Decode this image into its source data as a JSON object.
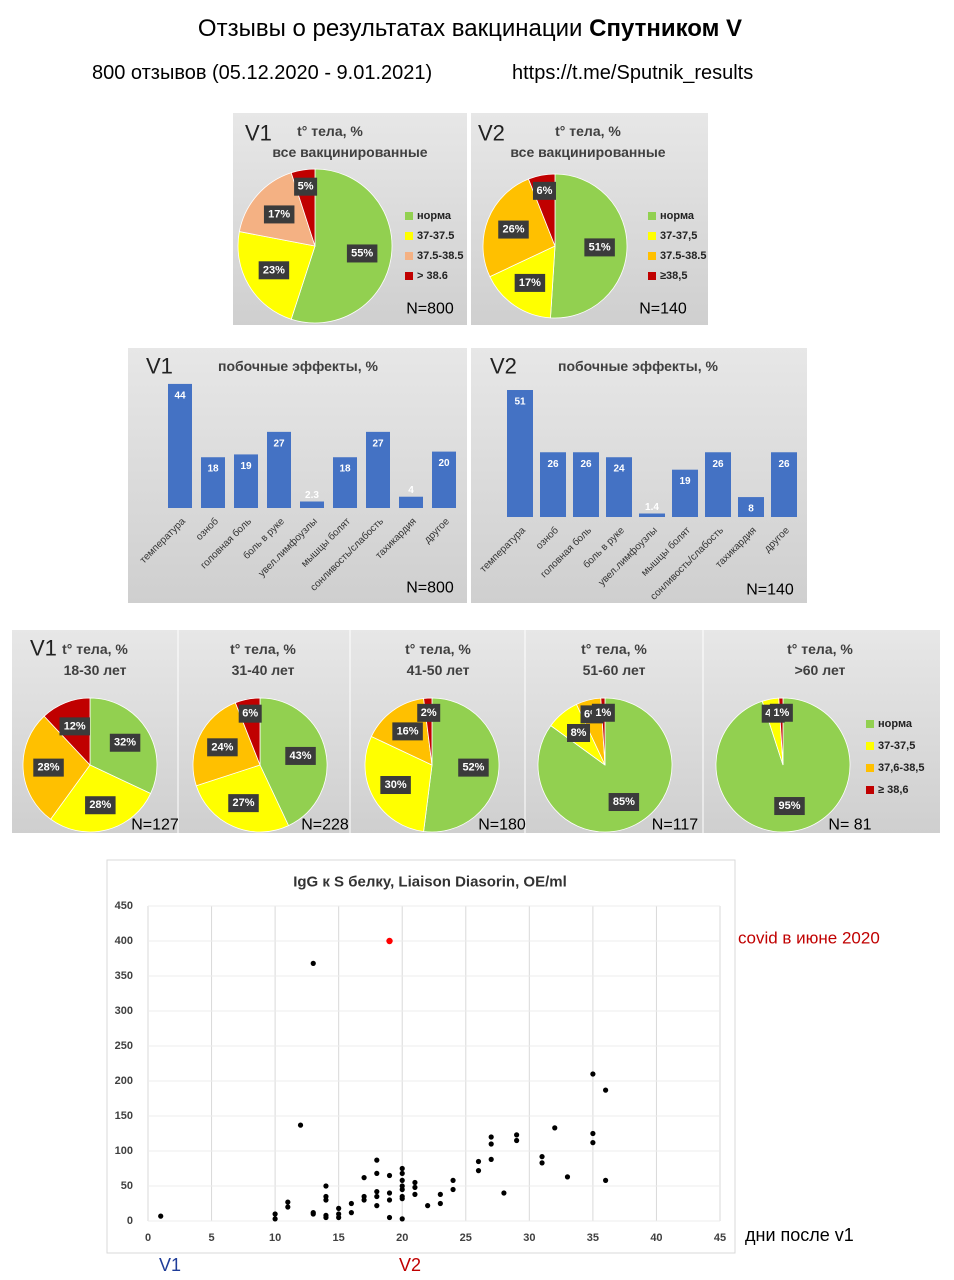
{
  "header": {
    "title": "Отзывы о результатах вакцинации ",
    "title_bold": "Спутником V",
    "subtitle": "800 отзывов (05.12.2020 - 9.01.2021)",
    "link": "https://t.me/Sputnik_results"
  },
  "chart_data": [
    {
      "type": "pie",
      "panel_label": "V1",
      "title": "t° тела, %",
      "subtitle": "все вакцинированные",
      "categories": [
        "норма",
        "37-37.5",
        "37.5-38.5",
        "> 38.6"
      ],
      "values": [
        55,
        23,
        17,
        5
      ],
      "value_labels": [
        "55%",
        "23%",
        "17%",
        "5%"
      ],
      "colors": [
        "#92d050",
        "#ffff00",
        "#f4b183",
        "#c00000"
      ],
      "legend": "right",
      "sample_size": "N=800"
    },
    {
      "type": "pie",
      "panel_label": "V2",
      "title": "t° тела, %",
      "subtitle": "все вакцинированные",
      "categories": [
        "норма",
        "37-37,5",
        "37.5-38.5",
        "≥38,5"
      ],
      "values": [
        51,
        17,
        26,
        6
      ],
      "value_labels": [
        "51%",
        "17%",
        "26%",
        "6%"
      ],
      "colors": [
        "#92d050",
        "#ffff00",
        "#ffc000",
        "#c00000"
      ],
      "legend": "right",
      "sample_size": "N=140"
    },
    {
      "type": "bar",
      "panel_label": "V1",
      "title": "побочные эффекты, %",
      "categories": [
        "температура",
        "озноб",
        "головная боль",
        "боль в руке",
        "увел.лимфоузлы",
        "мышцы болят",
        "сонливость/слабость",
        "тахикардия",
        "другое"
      ],
      "values": [
        44,
        18,
        19,
        27,
        2.3,
        18,
        27,
        4,
        20
      ],
      "color": "#4472c4",
      "sample_size": "N=800"
    },
    {
      "type": "bar",
      "panel_label": "V2",
      "title": "побочные эффекты, %",
      "categories": [
        "температура",
        "озноб",
        "головная боль",
        "боль в руке",
        "увел.лимфоузлы",
        "мышцы болят",
        "сонливость/слабость",
        "тахикардия",
        "другое"
      ],
      "values": [
        51,
        26,
        26,
        24,
        1.4,
        19,
        26,
        8,
        26
      ],
      "color": "#4472c4",
      "sample_size": "N=140"
    },
    {
      "type": "pie",
      "panel_label": "V1",
      "title": "t° тела, %",
      "subtitle": "18-30 лет",
      "values": [
        32,
        28,
        28,
        12
      ],
      "value_labels": [
        "32%",
        "28%",
        "28%",
        "12%"
      ],
      "colors": [
        "#92d050",
        "#ffff00",
        "#ffc000",
        "#c00000"
      ],
      "sample_size": "N=127"
    },
    {
      "type": "pie",
      "title": "t° тела, %",
      "subtitle": "31-40 лет",
      "values": [
        43,
        27,
        24,
        6
      ],
      "value_labels": [
        "43%",
        "27%",
        "24%",
        "6%"
      ],
      "colors": [
        "#92d050",
        "#ffff00",
        "#ffc000",
        "#c00000"
      ],
      "sample_size": "N=228"
    },
    {
      "type": "pie",
      "title": "t° тела, %",
      "subtitle": "41-50 лет",
      "values": [
        52,
        30,
        16,
        2
      ],
      "value_labels": [
        "52%",
        "30%",
        "16%",
        "2%"
      ],
      "colors": [
        "#92d050",
        "#ffff00",
        "#ffc000",
        "#c00000"
      ],
      "sample_size": "N=180"
    },
    {
      "type": "pie",
      "title": "t° тела, %",
      "subtitle": "51-60 лет",
      "values": [
        85,
        8,
        6,
        1
      ],
      "value_labels": [
        "85%",
        "8%",
        "6%",
        "1%"
      ],
      "colors": [
        "#92d050",
        "#ffff00",
        "#ffc000",
        "#c00000"
      ],
      "sample_size": "N=117"
    },
    {
      "type": "pie",
      "title": "t° тела, %",
      "subtitle": ">60 лет",
      "categories": [
        "норма",
        "37-37,5",
        "37,6-38,5",
        "≥ 38,6"
      ],
      "values": [
        95,
        4,
        0,
        1
      ],
      "value_labels": [
        "95%",
        "4%",
        null,
        "1%"
      ],
      "colors": [
        "#92d050",
        "#ffff00",
        "#ffc000",
        "#c00000"
      ],
      "legend": "right",
      "sample_size": "N= 81"
    },
    {
      "type": "scatter",
      "title": "IgG к S белку, Liaison Diasorin, OE/ml",
      "x_label": "дни после v1",
      "xlim": [
        0,
        45
      ],
      "xticks": [
        0,
        5,
        10,
        15,
        20,
        25,
        30,
        35,
        40,
        45
      ],
      "ylim": [
        0,
        450
      ],
      "yticks": [
        0,
        50,
        100,
        150,
        200,
        250,
        300,
        350,
        400,
        450
      ],
      "grid": true,
      "series": [
        {
          "color": "#000000",
          "x": [
            1,
            10,
            10,
            11,
            11,
            12,
            13,
            13,
            13,
            14,
            14,
            14,
            14,
            14,
            15,
            15,
            15,
            16,
            16,
            17,
            17,
            17,
            18,
            18,
            18,
            18,
            18,
            19,
            19,
            19,
            19,
            20,
            20,
            20,
            20,
            20,
            20,
            20,
            20,
            21,
            21,
            21,
            22,
            23,
            23,
            24,
            24,
            26,
            26,
            27,
            27,
            27,
            28,
            29,
            29,
            31,
            31,
            32,
            33,
            35,
            35,
            35,
            36,
            36
          ],
          "values": [
            7,
            10,
            3,
            27,
            20,
            137,
            368,
            12,
            10,
            50,
            35,
            30,
            8,
            5,
            18,
            10,
            5,
            25,
            12,
            62,
            35,
            30,
            87,
            68,
            42,
            35,
            22,
            65,
            40,
            30,
            5,
            75,
            68,
            58,
            50,
            45,
            35,
            32,
            3,
            55,
            48,
            38,
            22,
            38,
            25,
            58,
            45,
            85,
            72,
            120,
            110,
            88,
            40,
            123,
            115,
            92,
            83,
            133,
            63,
            210,
            125,
            112,
            187,
            58
          ]
        },
        {
          "name": "covid в июне 2020",
          "color": "#ff0000",
          "x": [
            19
          ],
          "values": [
            400
          ]
        }
      ],
      "annotations": [
        {
          "text": "V1",
          "color": "#1f3d99"
        },
        {
          "text": "V2",
          "color": "#c00000"
        }
      ]
    }
  ]
}
